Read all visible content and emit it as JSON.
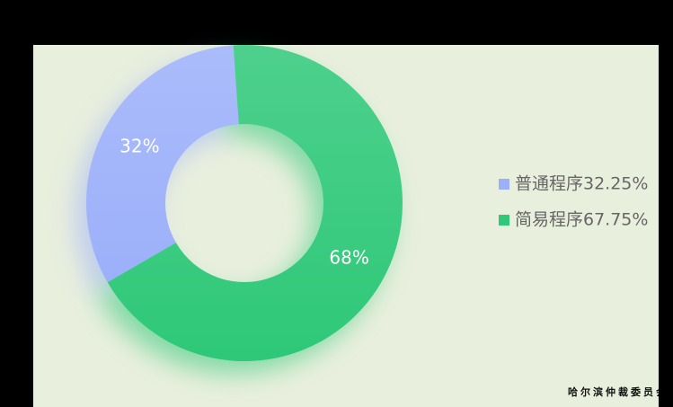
{
  "chart_data": {
    "type": "pie",
    "categories": [
      "普通程序32.25%",
      "简易程序67.75%"
    ],
    "values": [
      32.25,
      67.75
    ],
    "value_labels": [
      "32%",
      "68%"
    ],
    "colors": [
      "#9cb0fa",
      "#2ec878"
    ],
    "legend": "right"
  },
  "footer": {
    "watermark": "哈尔滨仲裁委员会"
  }
}
